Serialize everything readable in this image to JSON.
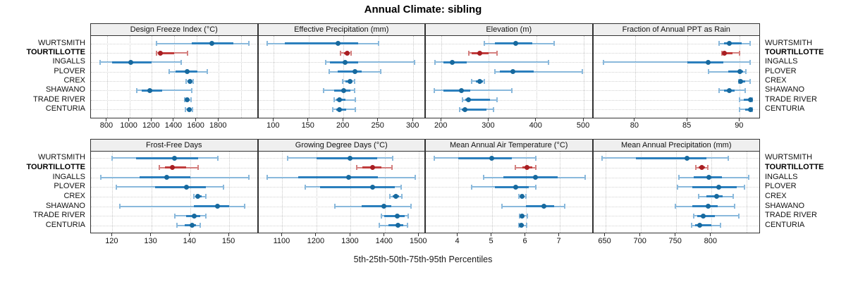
{
  "colors": {
    "blue_dot": "#17699e",
    "blue_band": "#2b7fbd",
    "blue_whisker": "#8ab9dc",
    "red_dot": "#a81e22",
    "red_band": "#c03c3c",
    "red_whisker": "#d4807f",
    "grid": "#c9c9c9",
    "strip_bg": "#efefef",
    "border": "#333333"
  },
  "chart_data": {
    "type": "scatter",
    "subtype": "trellis-dot-interval-plot",
    "title": "Annual Climate: sibling",
    "caption": "5th-25th-50th-75th-95th Percentiles",
    "percentiles": [
      5,
      25,
      50,
      75,
      95
    ],
    "categories": [
      "WURTSMITH",
      "TOURTILLOTTE",
      "INGALLS",
      "PLOVER",
      "CREX",
      "SHAWANO",
      "TRADE RIVER",
      "CENTURIA"
    ],
    "highlight_category": "TOURTILLOTTE",
    "legend_position": "none",
    "grid": true,
    "panels": [
      {
        "title": "Design Freeze Index (°C)",
        "xlim": [
          655,
          2155
        ],
        "ticks": [
          800,
          1000,
          1200,
          1400,
          1600,
          1800
        ],
        "tick_labels": [
          "800",
          "1000",
          "1200",
          "1400",
          "1600",
          "1800"
        ],
        "values": [
          [
            1245,
            1560,
            1740,
            1930,
            2070
          ],
          [
            1245,
            1260,
            1275,
            1400,
            1520
          ],
          [
            735,
            845,
            1010,
            1200,
            1465
          ],
          [
            1355,
            1410,
            1515,
            1610,
            1695
          ],
          [
            1510,
            1525,
            1540,
            1555,
            1570
          ],
          [
            1065,
            1110,
            1185,
            1290,
            1560
          ],
          [
            1495,
            1505,
            1520,
            1535,
            1550
          ],
          [
            1500,
            1515,
            1535,
            1550,
            1565
          ]
        ]
      },
      {
        "title": "Effective Precipitation (mm)",
        "xlim": [
          78,
          318
        ],
        "ticks": [
          100,
          150,
          200,
          250,
          300
        ],
        "tick_labels": [
          "100",
          "150",
          "200",
          "250",
          "300"
        ],
        "values": [
          [
            91,
            116,
            192,
            221,
            250
          ],
          [
            196,
            201,
            205,
            208,
            211
          ],
          [
            174,
            181,
            202,
            221,
            302
          ],
          [
            180,
            192,
            216,
            226,
            253
          ],
          [
            199,
            203,
            209,
            212,
            216
          ],
          [
            171,
            187,
            200,
            210,
            216
          ],
          [
            187,
            190,
            194,
            203,
            217
          ],
          [
            185,
            190,
            194,
            204,
            217
          ]
        ]
      },
      {
        "title": "Elevation (m)",
        "xlim": [
          167,
          520
        ],
        "ticks": [
          200,
          300,
          400,
          500
        ],
        "tick_labels": [
          "200",
          "300",
          "400",
          "500"
        ],
        "values": [
          [
            290,
            313,
            357,
            392,
            437
          ],
          [
            257,
            264,
            280,
            300,
            317
          ],
          [
            187,
            204,
            223,
            253,
            426
          ],
          [
            312,
            323,
            350,
            394,
            497
          ],
          [
            263,
            272,
            281,
            287,
            291
          ],
          [
            185,
            204,
            242,
            260,
            348
          ],
          [
            245,
            250,
            257,
            302,
            317
          ],
          [
            238,
            243,
            250,
            295,
            310
          ]
        ]
      },
      {
        "title": "Fraction of Annual PPT as Rain",
        "xlim": [
          76,
          92
        ],
        "ticks": [
          80,
          85,
          90
        ],
        "tick_labels": [
          "80",
          "85",
          "90"
        ],
        "values": [
          [
            88,
            88.5,
            89,
            90.2,
            91
          ],
          [
            88.3,
            88.4,
            88.5,
            89.3,
            90
          ],
          [
            77,
            85,
            87,
            88.4,
            91
          ],
          [
            87,
            88.9,
            90,
            90.3,
            90.6
          ],
          [
            89.9,
            90,
            90.1,
            90.5,
            91
          ],
          [
            88,
            88.5,
            89,
            89.5,
            90.5
          ],
          [
            90,
            90.4,
            91,
            91.1,
            91.2
          ],
          [
            90,
            90.5,
            91,
            91.1,
            91.2
          ]
        ]
      },
      {
        "title": "Frost-Free Days",
        "xlim": [
          114.5,
          157.5
        ],
        "ticks": [
          120,
          130,
          140,
          150
        ],
        "tick_labels": [
          "120",
          "130",
          "140",
          "150"
        ],
        "values": [
          [
            120,
            126,
            136,
            142,
            147
          ],
          [
            132,
            133.5,
            135.5,
            139,
            142
          ],
          [
            117,
            127,
            134,
            140,
            155
          ],
          [
            121,
            131,
            139,
            144,
            148.5
          ],
          [
            141,
            141.5,
            142,
            143,
            144
          ],
          [
            122,
            141,
            147,
            150,
            154
          ],
          [
            136,
            139,
            141,
            142.5,
            144
          ],
          [
            136.5,
            138.5,
            140.5,
            141.5,
            142.5
          ]
        ]
      },
      {
        "title": "Growing Degree Days (°C)",
        "xlim": [
          1030,
          1520
        ],
        "ticks": [
          1100,
          1200,
          1300,
          1400,
          1500
        ],
        "tick_labels": [
          "1100",
          "1200",
          "1300",
          "1400",
          "1500"
        ],
        "values": [
          [
            1115,
            1200,
            1298,
            1377,
            1424
          ],
          [
            1318,
            1335,
            1365,
            1390,
            1420
          ],
          [
            1055,
            1146,
            1294,
            1380,
            1489
          ],
          [
            1167,
            1210,
            1364,
            1429,
            1448
          ],
          [
            1415,
            1423,
            1432,
            1441,
            1450
          ],
          [
            1254,
            1332,
            1398,
            1419,
            1476
          ],
          [
            1389,
            1398,
            1436,
            1458,
            1468
          ],
          [
            1383,
            1410,
            1439,
            1455,
            1467
          ]
        ]
      },
      {
        "title": "Mean Annual Air Temperature (°C)",
        "xlim": [
          3.05,
          8.0
        ],
        "ticks": [
          4,
          5,
          6,
          7
        ],
        "tick_labels": [
          "4",
          "5",
          "6",
          "7"
        ],
        "values": [
          [
            3.3,
            4.0,
            5.0,
            5.6,
            6.3
          ],
          [
            5.7,
            5.9,
            6.05,
            6.2,
            6.3
          ],
          [
            4.75,
            5.35,
            6.3,
            6.95,
            7.75
          ],
          [
            4.4,
            5.1,
            5.7,
            6.1,
            6.3
          ],
          [
            5.8,
            5.85,
            5.9,
            5.95,
            6.0
          ],
          [
            5.3,
            6.0,
            6.55,
            6.85,
            7.15
          ],
          [
            5.82,
            5.87,
            5.9,
            5.97,
            6.05
          ],
          [
            5.8,
            5.85,
            5.88,
            5.95,
            6.03
          ]
        ]
      },
      {
        "title": "Mean Annual Precipitation (mm)",
        "xlim": [
          633,
          870
        ],
        "ticks": [
          650,
          700,
          750,
          800
        ],
        "tick_labels": [
          "650",
          "700",
          "750",
          "800"
        ],
        "values": [
          [
            645,
            693,
            766,
            793,
            824
          ],
          [
            778,
            782,
            787,
            791,
            795
          ],
          [
            754,
            775,
            797,
            815,
            853
          ],
          [
            752,
            773,
            811,
            836,
            847
          ],
          [
            782,
            793,
            808,
            816,
            831
          ],
          [
            749,
            773,
            796,
            809,
            833
          ],
          [
            775,
            780,
            789,
            805,
            839
          ],
          [
            772,
            777,
            784,
            800,
            813
          ]
        ]
      }
    ]
  }
}
